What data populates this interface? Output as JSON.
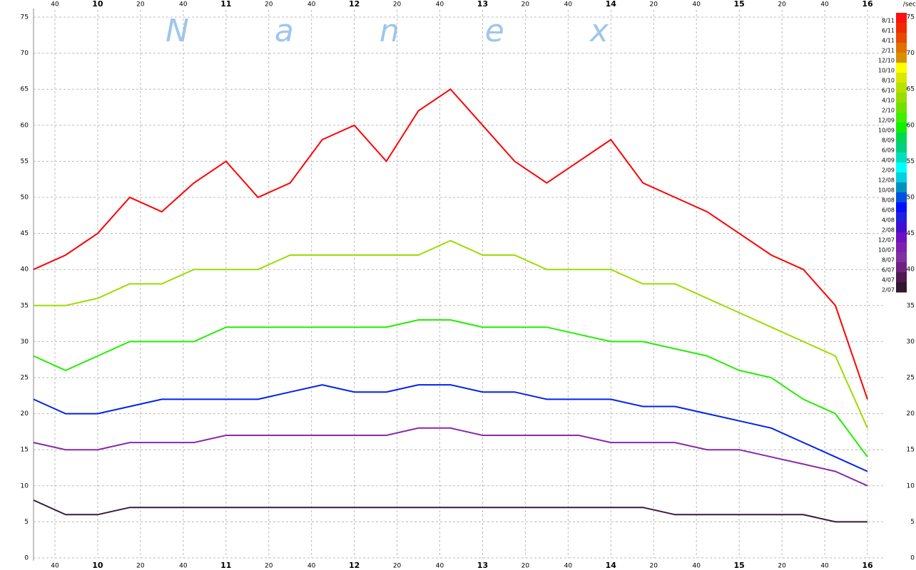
{
  "chart_data": {
    "type": "line",
    "watermark": "Nanex",
    "unit_label": "/sec",
    "x": [
      9.5,
      9.75,
      10,
      10.25,
      10.5,
      10.75,
      11,
      11.25,
      11.5,
      11.75,
      12,
      12.25,
      12.5,
      12.75,
      13,
      13.25,
      13.5,
      13.75,
      14,
      14.25,
      14.5,
      14.75,
      15,
      15.25,
      15.5,
      15.75,
      16
    ],
    "xlim": [
      9.5,
      16
    ],
    "xticks": [
      {
        "value": 9.6667,
        "label": "40"
      },
      10,
      {
        "value": 10.3333,
        "label": "20"
      },
      {
        "value": 10.6667,
        "label": "40"
      },
      11,
      {
        "value": 11.3333,
        "label": "20"
      },
      {
        "value": 11.6667,
        "label": "40"
      },
      12,
      {
        "value": 12.3333,
        "label": "20"
      },
      {
        "value": 12.6667,
        "label": "40"
      },
      13,
      {
        "value": 13.3333,
        "label": "20"
      },
      {
        "value": 13.6667,
        "label": "40"
      },
      14,
      {
        "value": 14.3333,
        "label": "20"
      },
      {
        "value": 14.6667,
        "label": "40"
      },
      15,
      {
        "value": 15.3333,
        "label": "20"
      },
      {
        "value": 15.6667,
        "label": "40"
      },
      16
    ],
    "ylim": [
      0,
      75
    ],
    "yticks": [
      0,
      5,
      10,
      15,
      20,
      25,
      30,
      35,
      40,
      45,
      50,
      55,
      60,
      65,
      70,
      75
    ],
    "grid": true,
    "series": [
      {
        "color": "#ff0000",
        "values": [
          40,
          42,
          45,
          50,
          48,
          52,
          55,
          50,
          52,
          58,
          60,
          55,
          62,
          65,
          60,
          55,
          52,
          55,
          58,
          52,
          50,
          48,
          45,
          42,
          40,
          35,
          22
        ]
      },
      {
        "color": "#99dd00",
        "values": [
          35,
          35,
          36,
          38,
          38,
          40,
          40,
          40,
          42,
          42,
          42,
          42,
          42,
          44,
          42,
          42,
          40,
          40,
          40,
          38,
          38,
          36,
          34,
          32,
          30,
          28,
          18
        ]
      },
      {
        "color": "#22ee00",
        "values": [
          28,
          26,
          28,
          30,
          30,
          30,
          32,
          32,
          32,
          32,
          32,
          32,
          33,
          33,
          32,
          32,
          32,
          31,
          30,
          30,
          29,
          28,
          26,
          25,
          22,
          20,
          14
        ]
      },
      {
        "color": "#0022ee",
        "values": [
          22,
          20,
          20,
          21,
          22,
          22,
          22,
          22,
          23,
          24,
          23,
          23,
          24,
          24,
          23,
          23,
          22,
          22,
          22,
          21,
          21,
          20,
          19,
          18,
          16,
          14,
          12
        ]
      },
      {
        "color": "#8a2aa8",
        "values": [
          16,
          15,
          15,
          16,
          16,
          16,
          17,
          17,
          17,
          17,
          17,
          17,
          18,
          18,
          17,
          17,
          17,
          17,
          16,
          16,
          16,
          15,
          15,
          14,
          13,
          12,
          10
        ]
      },
      {
        "color": "#3a1a3a",
        "values": [
          8,
          6,
          6,
          7,
          7,
          7,
          7,
          7,
          7,
          7,
          7,
          7,
          7,
          7,
          7,
          7,
          7,
          7,
          7,
          7,
          6,
          6,
          6,
          6,
          6,
          5,
          5
        ]
      }
    ],
    "colorbar": [
      {
        "label": "8/11",
        "color": "#ff1010"
      },
      {
        "label": "6/11",
        "color": "#f02a00"
      },
      {
        "label": "4/11",
        "color": "#e84800"
      },
      {
        "label": "2/11",
        "color": "#e07000"
      },
      {
        "label": "12/10",
        "color": "#d89000"
      },
      {
        "label": "10/10",
        "color": "#ffff00"
      },
      {
        "label": "8/10",
        "color": "#d8e800"
      },
      {
        "label": "6/10",
        "color": "#b8e000"
      },
      {
        "label": "4/10",
        "color": "#98dc00"
      },
      {
        "label": "2/10",
        "color": "#70e000"
      },
      {
        "label": "12/09",
        "color": "#40ee00"
      },
      {
        "label": "10/09",
        "color": "#10f000"
      },
      {
        "label": "8/09",
        "color": "#00d850"
      },
      {
        "label": "6/09",
        "color": "#00d080"
      },
      {
        "label": "4/09",
        "color": "#00e0c0"
      },
      {
        "label": "2/09",
        "color": "#00ffff"
      },
      {
        "label": "12/08",
        "color": "#00d0e0"
      },
      {
        "label": "10/08",
        "color": "#0090c0"
      },
      {
        "label": "8/08",
        "color": "#0050e0"
      },
      {
        "label": "6/08",
        "color": "#0010ff"
      },
      {
        "label": "4/08",
        "color": "#2020e0"
      },
      {
        "label": "2/08",
        "color": "#4010d0"
      },
      {
        "label": "12/07",
        "color": "#7010c0"
      },
      {
        "label": "10/07",
        "color": "#7c20b0"
      },
      {
        "label": "8/07",
        "color": "#8030a0"
      },
      {
        "label": "6/07",
        "color": "#702080"
      },
      {
        "label": "4/07",
        "color": "#501850"
      },
      {
        "label": "2/07",
        "color": "#301830"
      }
    ]
  }
}
